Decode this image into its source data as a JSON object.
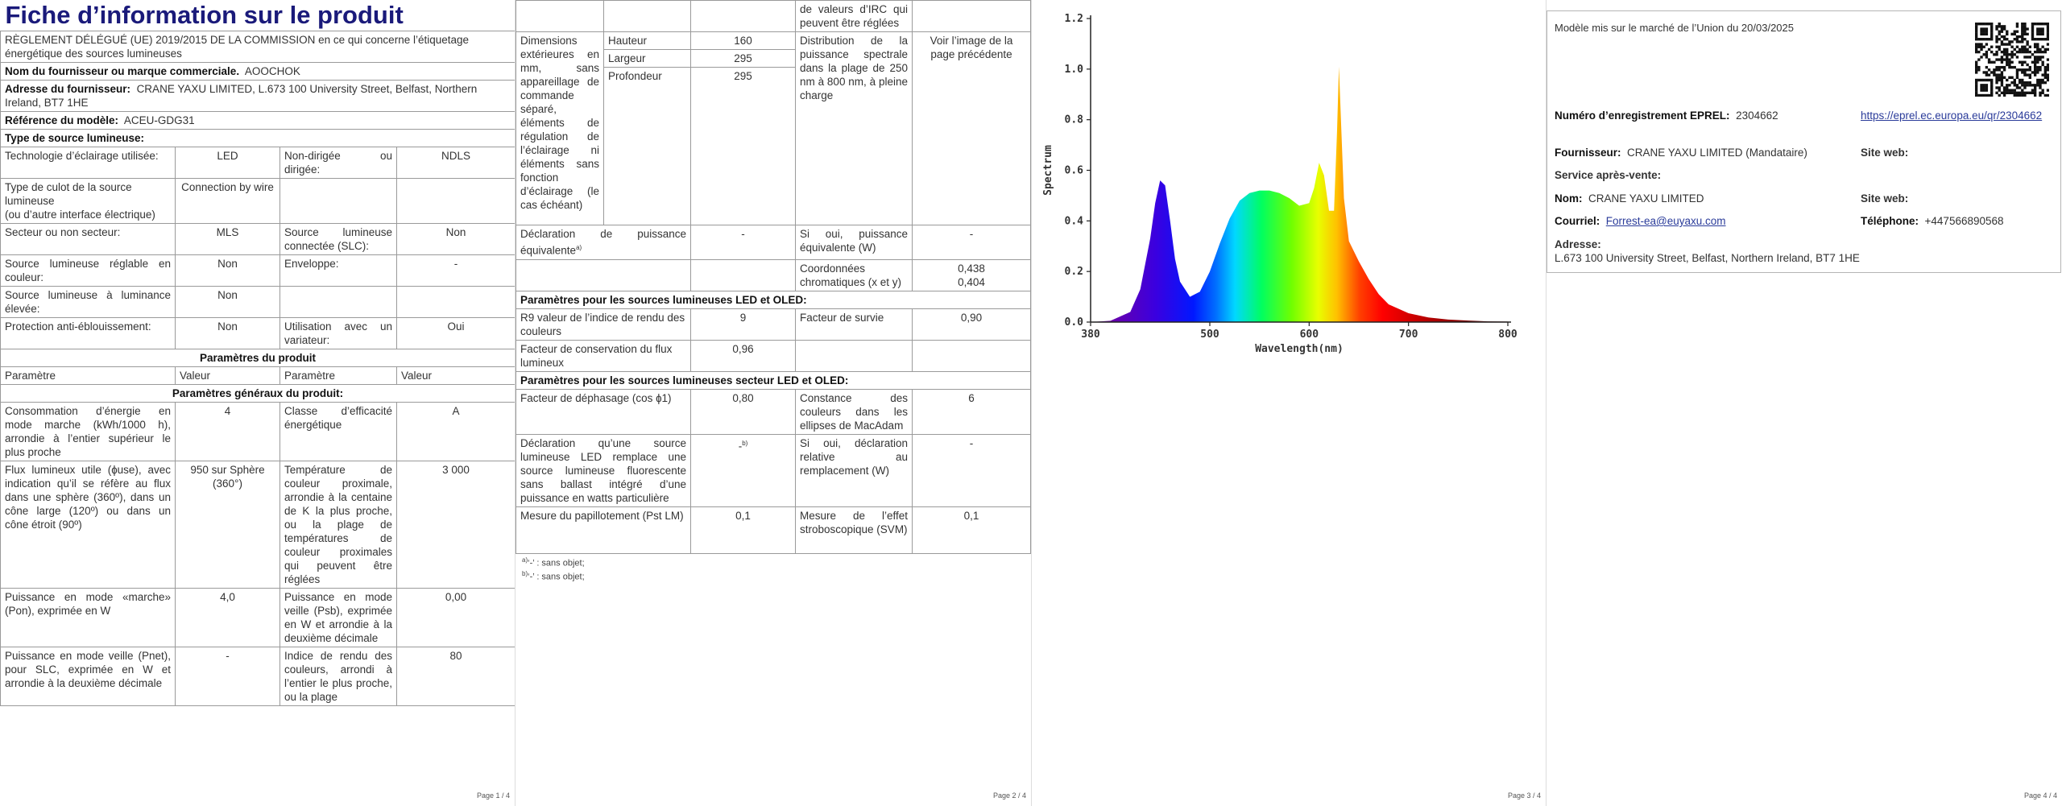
{
  "page1": {
    "title": "Fiche d’information sur le produit",
    "regulation": "RÈGLEMENT DÉLÉGUÉ (UE) 2019/2015 DE LA COMMISSION en ce qui concerne l’étiquetage énergétique des sources lumineuses",
    "supplier_name_label": "Nom du fournisseur ou marque commerciale.",
    "supplier_name": "AOOCHOK",
    "supplier_address_label": "Adresse du fournisseur:",
    "supplier_address": "CRANE YAXU LIMITED, L.673 100 University Street, Belfast, Northern Ireland, BT7 1HE",
    "model_ref_label": "Référence du modèle:",
    "model_ref": "ACEU-GDG31",
    "source_type": "Type de source lumineuse:",
    "rows": [
      {
        "l1": "Technologie d’éclairage utilisée:",
        "v1": "LED",
        "l2": "Non-dirigée ou dirigée:",
        "v2": "NDLS"
      },
      {
        "l1": "Type de culot de la source lumineuse",
        "l1b": "(ou d’autre interface électrique)",
        "v1": "Connection by wire",
        "l2": "",
        "v2": ""
      },
      {
        "l1": "Secteur ou non secteur:",
        "v1": "MLS",
        "l2": "Source lumineuse connectée (SLC):",
        "v2": "Non"
      },
      {
        "l1": "Source lumineuse réglable en couleur:",
        "v1": "Non",
        "l2": "Enveloppe:",
        "v2": "-"
      },
      {
        "l1": "Source lumineuse à luminance élevée:",
        "v1": "Non",
        "l2": "",
        "v2": ""
      },
      {
        "l1": "Protection anti-éblouissement:",
        "v1": "Non",
        "l2": "Utilisation avec un variateur:",
        "v2": "Oui"
      }
    ],
    "product_params": "Paramètres du produit",
    "head": {
      "c1": "Paramètre",
      "c2": "Valeur",
      "c3": "Paramètre",
      "c4": "Valeur"
    },
    "general_params": "Paramètres généraux du produit:",
    "gen_rows": [
      {
        "l1": "Consommation d’énergie en mode marche (kWh/1000 h), arrondie à l’entier supérieur le plus proche",
        "v1": "4",
        "l2": "Classe d’efficacité énergétique",
        "v2": "A"
      },
      {
        "l1": "Flux lumineux utile (ɸuse), avec indication qu’il se réfère au flux dans une sphère (360º), dans un cône large (120º) ou dans un cône étroit (90º)",
        "v1": "950 sur Sphère (360°)",
        "l2": "Température de couleur proximale, arrondie à la centaine de K la plus proche, ou la plage de températures de couleur proximales qui peuvent être réglées",
        "v2": "3 000"
      },
      {
        "l1": "Puissance en mode «marche» (Pon), exprimée en W",
        "v1": "4,0",
        "l2": "Puissance en mode veille (Psb), exprimée en W et arrondie à la deuxième décimale",
        "v2": "0,00"
      },
      {
        "l1": "Puissance en mode veille (Pnet), pour SLC, exprimée en W et arrondie à la deuxième décimale",
        "v1": "-",
        "l2": "Indice de rendu des couleurs, arrondi à l’entier le plus proche, ou la plage",
        "v2": "80"
      }
    ],
    "page_num": "Page 1 / 4"
  },
  "page2": {
    "top_cont": "de valeurs d’IRC qui peuvent être réglées",
    "dims_label": "Dimensions extérieures en mm, sans appareillage de commande séparé, éléments de régulation de l’éclairage ni éléments sans fonction d’éclairage (le cas échéant)",
    "dims": [
      {
        "name": "Hauteur",
        "value": "160"
      },
      {
        "name": "Largeur",
        "value": "295"
      },
      {
        "name": "Profondeur",
        "value": "295"
      }
    ],
    "spectral_label": "Distribution de la puissance spectrale dans la plage de 250 nm à 800 nm, à pleine charge",
    "spectral_value": "Voir l’image de la page précédente",
    "equiv_label": "Déclaration de puissance équivalente",
    "equiv_sup": "a)",
    "equiv_value": "-",
    "equiv_if_label": "Si oui, puissance équivalente (W)",
    "equiv_if_value": "-",
    "chroma_label": "Coordonnées chromatiques (x et y)",
    "chroma_x": "0,438",
    "chroma_y": "0,404",
    "led_section": "Paramètres pour les sources lumineuses LED et OLED:",
    "r9_label": "R9 valeur de l’indice de rendu des couleurs",
    "r9_value": "9",
    "survival_label": "Facteur de survie",
    "survival_value": "0,90",
    "maint_label": "Facteur de conservation du flux lumineux",
    "maint_value": "0,96",
    "mains_section": "Paramètres pour les sources lumineuses secteur LED et OLED:",
    "phase_label": "Facteur de déphasage (cos ɸ1)",
    "phase_value": "0,80",
    "macadam_label": "Constance des couleurs dans les ellipses de MacAdam",
    "macadam_value": "6",
    "replace_label": "Déclaration qu’une source lumineuse LED remplace une source lumineuse fluorescente sans ballast intégré d’une puissance en watts particulière",
    "replace_value": "-",
    "replace_sup": "b)",
    "replace_if_label": "Si oui, déclaration relative au remplacement (W)",
    "replace_if_value": "-",
    "flicker_label": "Mesure du papillotement (Pst LM)",
    "flicker_value": "0,1",
    "strobo_label": "Mesure de l’effet stroboscopique (SVM)",
    "strobo_value": "0,1",
    "note_a_sup": "a)",
    "note_a": "‘-’ : sans objet;",
    "note_b_sup": "b)",
    "note_b": "‘-’ : sans objet;",
    "page_num": "Page 2 / 4"
  },
  "page3": {
    "page_num": "Page 3 / 4",
    "chart_data": {
      "type": "area",
      "xlabel": "Wavelength(nm)",
      "ylabel": "Spectrum",
      "xlim": [
        380,
        800
      ],
      "ylim": [
        0,
        1.2
      ],
      "x_ticks": [
        380,
        500,
        600,
        700,
        800
      ],
      "y_ticks": [
        "0.0",
        "0.2",
        "0.4",
        "0.6",
        "0.8",
        "1.0",
        "1.2"
      ],
      "x": [
        380,
        400,
        420,
        430,
        440,
        445,
        450,
        455,
        460,
        465,
        470,
        480,
        490,
        500,
        510,
        520,
        530,
        540,
        550,
        560,
        570,
        580,
        590,
        600,
        605,
        610,
        615,
        620,
        625,
        628,
        630,
        632,
        635,
        640,
        645,
        650,
        660,
        670,
        680,
        700,
        720,
        740,
        760,
        780,
        800
      ],
      "values": [
        0,
        0.005,
        0.04,
        0.13,
        0.33,
        0.47,
        0.56,
        0.54,
        0.4,
        0.25,
        0.16,
        0.1,
        0.12,
        0.2,
        0.31,
        0.41,
        0.48,
        0.51,
        0.52,
        0.52,
        0.51,
        0.49,
        0.46,
        0.47,
        0.53,
        0.63,
        0.58,
        0.44,
        0.44,
        0.75,
        1.01,
        0.8,
        0.49,
        0.32,
        0.28,
        0.24,
        0.17,
        0.11,
        0.07,
        0.035,
        0.018,
        0.01,
        0.006,
        0.003,
        0.002
      ]
    }
  },
  "page4": {
    "placed_on_market": "Modèle mis sur le marché de l’Union du 20/03/2025",
    "eprel_label": "Numéro d’enregistrement EPREL:",
    "eprel_number": "2304662",
    "eprel_url": "https://eprel.ec.europa.eu/qr/2304662",
    "supplier_label": "Fournisseur:",
    "supplier_value": "CRANE YAXU LIMITED (Mandataire)",
    "website_label": "Site web:",
    "aftersales_label": "Service après-vente:",
    "name_label": "Nom:",
    "name_value": "CRANE YAXU LIMITED",
    "website2_label": "Site web:",
    "email_label": "Courriel:",
    "email_value": "Forrest-ea@euyaxu.com",
    "phone_label": "Téléphone:",
    "phone_value": "+447566890568",
    "address_label": "Adresse:",
    "address_value": "L.673 100 University Street, Belfast, Northern Ireland, BT7 1HE",
    "page_num": "Page 4 / 4"
  }
}
